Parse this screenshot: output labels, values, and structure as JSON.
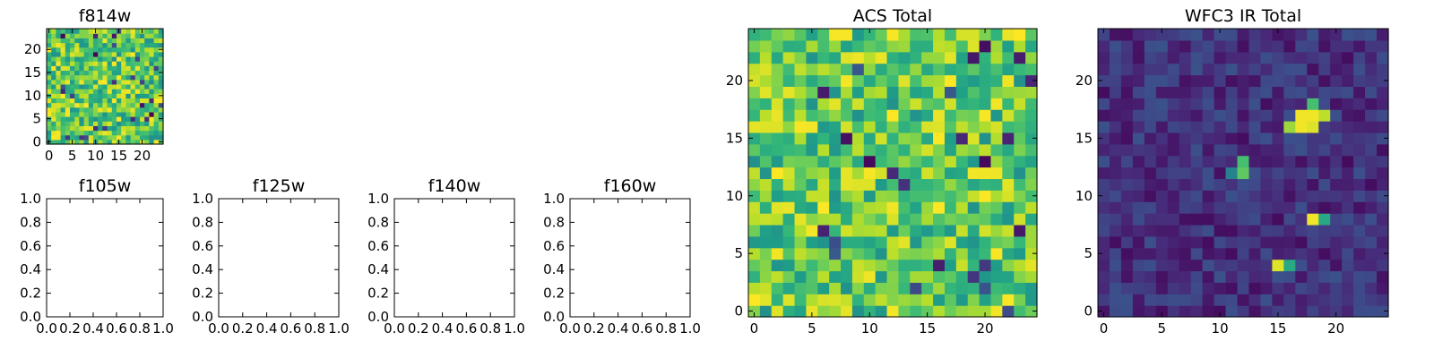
{
  "chart_data": [
    {
      "type": "heatmap",
      "title": "f814w",
      "xlim": [
        -0.5,
        24.5
      ],
      "ylim": [
        -0.5,
        24.5
      ],
      "xticks": [
        "0",
        "5",
        "10",
        "15",
        "20"
      ],
      "yticks": [
        "0",
        "5",
        "10",
        "15",
        "20"
      ],
      "grid_size": [
        25,
        25
      ],
      "colormap": "viridis"
    },
    {
      "type": "heatmap",
      "title": "f105w",
      "xlim": [
        0,
        1
      ],
      "ylim": [
        0,
        1
      ],
      "xticks": [
        "0.0",
        "0.2",
        "0.4",
        "0.6",
        "0.8",
        "1.0"
      ],
      "yticks": [
        "0.0",
        "0.2",
        "0.4",
        "0.6",
        "0.8",
        "1.0"
      ],
      "empty": true
    },
    {
      "type": "heatmap",
      "title": "f125w",
      "xlim": [
        0,
        1
      ],
      "ylim": [
        0,
        1
      ],
      "xticks": [
        "0.0",
        "0.2",
        "0.4",
        "0.6",
        "0.8",
        "1.0"
      ],
      "yticks": [
        "0.0",
        "0.2",
        "0.4",
        "0.6",
        "0.8",
        "1.0"
      ],
      "empty": true
    },
    {
      "type": "heatmap",
      "title": "f140w",
      "xlim": [
        0,
        1
      ],
      "ylim": [
        0,
        1
      ],
      "xticks": [
        "0.0",
        "0.2",
        "0.4",
        "0.6",
        "0.8",
        "1.0"
      ],
      "yticks": [
        "0.0",
        "0.2",
        "0.4",
        "0.6",
        "0.8",
        "1.0"
      ],
      "empty": true
    },
    {
      "type": "heatmap",
      "title": "f160w",
      "xlim": [
        0,
        1
      ],
      "ylim": [
        0,
        1
      ],
      "xticks": [
        "0.0",
        "0.2",
        "0.4",
        "0.6",
        "0.8",
        "1.0"
      ],
      "yticks": [
        "0.0",
        "0.2",
        "0.4",
        "0.6",
        "0.8",
        "1.0"
      ],
      "empty": true
    },
    {
      "type": "heatmap",
      "title": "ACS Total",
      "xlim": [
        -0.5,
        24.5
      ],
      "ylim": [
        -0.5,
        24.5
      ],
      "xticks": [
        "0",
        "5",
        "10",
        "15",
        "20"
      ],
      "yticks": [
        "0",
        "5",
        "10",
        "15",
        "20"
      ],
      "grid_size": [
        25,
        25
      ],
      "colormap": "viridis"
    },
    {
      "type": "heatmap",
      "title": "WFC3 IR Total",
      "xlim": [
        -0.5,
        24.5
      ],
      "ylim": [
        -0.5,
        24.5
      ],
      "xticks": [
        "0",
        "5",
        "10",
        "15",
        "20"
      ],
      "yticks": [
        "0",
        "5",
        "10",
        "15",
        "20"
      ],
      "grid_size": [
        25,
        25
      ],
      "colormap": "viridis",
      "bright_pixels": [
        {
          "x": 17,
          "y": 17,
          "level": 0.98
        },
        {
          "x": 18,
          "y": 17,
          "level": 0.98
        },
        {
          "x": 19,
          "y": 17,
          "level": 0.9
        },
        {
          "x": 16,
          "y": 16,
          "level": 0.85
        },
        {
          "x": 17,
          "y": 16,
          "level": 0.98
        },
        {
          "x": 18,
          "y": 16,
          "level": 0.95
        },
        {
          "x": 18,
          "y": 18,
          "level": 0.7
        },
        {
          "x": 12,
          "y": 13,
          "level": 0.7
        },
        {
          "x": 12,
          "y": 12,
          "level": 0.75
        },
        {
          "x": 11,
          "y": 12,
          "level": 0.45
        },
        {
          "x": 18,
          "y": 8,
          "level": 0.98
        },
        {
          "x": 19,
          "y": 8,
          "level": 0.6
        },
        {
          "x": 15,
          "y": 4,
          "level": 0.95
        },
        {
          "x": 16,
          "y": 4,
          "level": 0.6
        }
      ]
    }
  ]
}
